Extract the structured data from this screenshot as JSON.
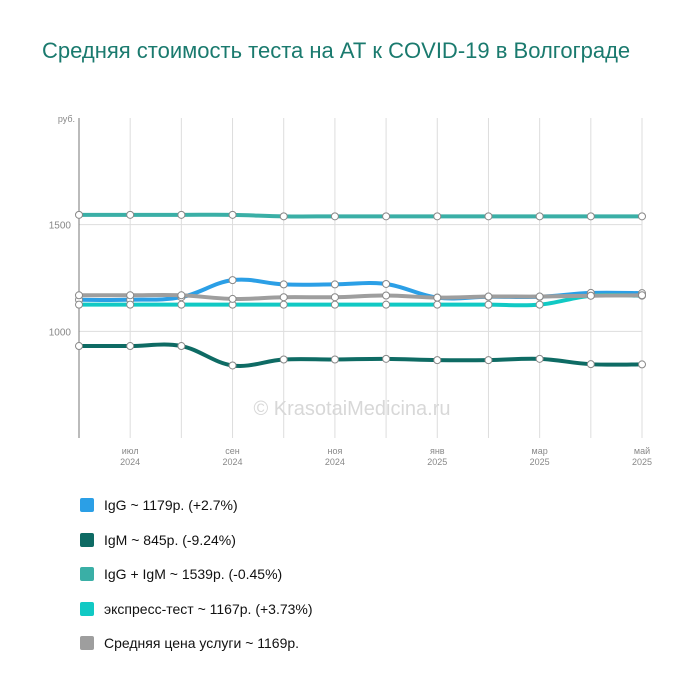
{
  "title": "Средняя стоимость теста на АТ к COVID-19 в Волгограде",
  "watermark": "© KrasotaiMedicina.ru",
  "colors": {
    "igg": "#2b9fe6",
    "igm": "#0e6b64",
    "igg_igm": "#3aafa6",
    "express": "#11c9c4",
    "avg": "#9e9e9e"
  },
  "legend": [
    {
      "label": "IgG ~ 1179р. (+2.7%)",
      "color": "#2b9fe6"
    },
    {
      "label": "IgM ~ 845р. (-9.24%)",
      "color": "#0e6b64"
    },
    {
      "label": "IgG + IgM ~ 1539р. (-0.45%)",
      "color": "#3aafa6"
    },
    {
      "label": "экспресс-тест ~ 1167р. (+3.73%)",
      "color": "#11c9c4"
    },
    {
      "label": "Средняя цена услуги ~ 1169р.",
      "color": "#9e9e9e"
    }
  ],
  "chart_data": {
    "type": "line",
    "y_unit": "руб.",
    "ylim": [
      500,
      2000
    ],
    "yticks": [
      1000,
      1500
    ],
    "x": [
      "2024-06",
      "2024-07",
      "2024-08",
      "2024-09",
      "2024-10",
      "2024-11",
      "2024-12",
      "2025-01",
      "2025-02",
      "2025-03",
      "2025-04",
      "2025-05"
    ],
    "x_tick_labels": [
      {
        "x": "2024-07",
        "month": "июл",
        "year": "2024"
      },
      {
        "x": "2024-09",
        "month": "сен",
        "year": "2024"
      },
      {
        "x": "2024-11",
        "month": "ноя",
        "year": "2024"
      },
      {
        "x": "2025-01",
        "month": "янв",
        "year": "2025"
      },
      {
        "x": "2025-03",
        "month": "мар",
        "year": "2025"
      },
      {
        "x": "2025-05",
        "month": "май",
        "year": "2025"
      }
    ],
    "grid": true,
    "series": [
      {
        "name": "IgG",
        "color": "#2b9fe6",
        "values": [
          1148,
          1148,
          1160,
          1240,
          1220,
          1220,
          1222,
          1158,
          1162,
          1162,
          1180,
          1179
        ]
      },
      {
        "name": "IgM",
        "color": "#0e6b64",
        "values": [
          931,
          931,
          931,
          840,
          868,
          868,
          871,
          865,
          865,
          871,
          846,
          845
        ]
      },
      {
        "name": "IgG + IgM",
        "color": "#3aafa6",
        "values": [
          1546,
          1546,
          1546,
          1546,
          1539,
          1539,
          1539,
          1539,
          1539,
          1539,
          1539,
          1539
        ]
      },
      {
        "name": "экспресс-тест",
        "color": "#11c9c4",
        "values": [
          1125,
          1125,
          1125,
          1125,
          1125,
          1125,
          1125,
          1125,
          1125,
          1125,
          1167,
          1167
        ]
      },
      {
        "name": "Средняя цена услуги",
        "color": "#9e9e9e",
        "values": [
          1169,
          1169,
          1169,
          1152,
          1160,
          1160,
          1168,
          1158,
          1163,
          1163,
          1167,
          1169
        ]
      }
    ]
  }
}
